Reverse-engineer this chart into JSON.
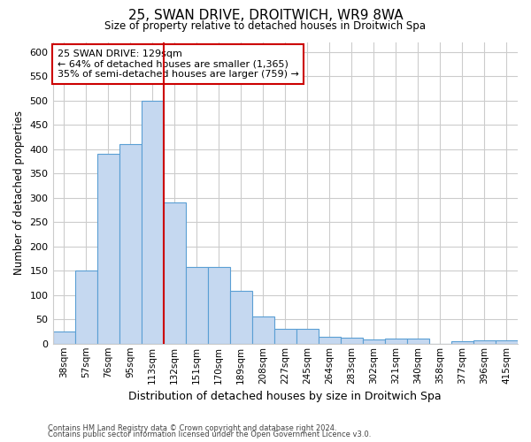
{
  "title1": "25, SWAN DRIVE, DROITWICH, WR9 8WA",
  "title2": "Size of property relative to detached houses in Droitwich Spa",
  "xlabel": "Distribution of detached houses by size in Droitwich Spa",
  "ylabel": "Number of detached properties",
  "categories": [
    "38sqm",
    "57sqm",
    "76sqm",
    "95sqm",
    "113sqm",
    "132sqm",
    "151sqm",
    "170sqm",
    "189sqm",
    "208sqm",
    "227sqm",
    "245sqm",
    "264sqm",
    "283sqm",
    "302sqm",
    "321sqm",
    "340sqm",
    "358sqm",
    "377sqm",
    "396sqm",
    "415sqm"
  ],
  "values": [
    25,
    150,
    390,
    410,
    500,
    290,
    158,
    158,
    108,
    55,
    30,
    30,
    15,
    12,
    9,
    10,
    10,
    0,
    5,
    7,
    6
  ],
  "bar_color": "#c5d8f0",
  "bar_edge_color": "#5a9fd4",
  "red_line_index": 5,
  "annotation_line1": "25 SWAN DRIVE: 129sqm",
  "annotation_line2": "← 64% of detached houses are smaller (1,365)",
  "annotation_line3": "35% of semi-detached houses are larger (759) →",
  "annotation_box_color": "#ffffff",
  "annotation_box_edge_color": "#cc0000",
  "red_line_color": "#cc0000",
  "ylim": [
    0,
    620
  ],
  "yticks": [
    0,
    50,
    100,
    150,
    200,
    250,
    300,
    350,
    400,
    450,
    500,
    550,
    600
  ],
  "footer1": "Contains HM Land Registry data © Crown copyright and database right 2024.",
  "footer2": "Contains public sector information licensed under the Open Government Licence v3.0.",
  "background_color": "#ffffff",
  "plot_bg_color": "#ffffff",
  "grid_color": "#cccccc"
}
